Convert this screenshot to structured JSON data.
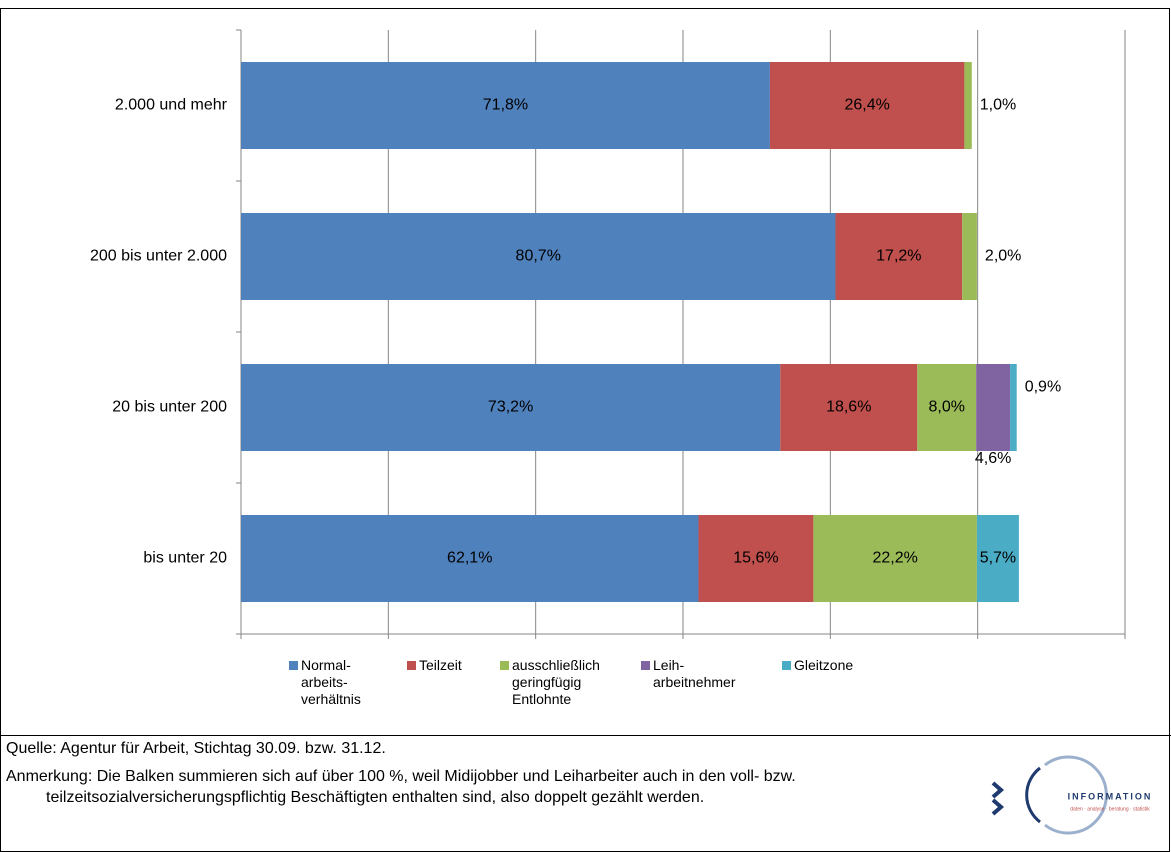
{
  "chart_data": {
    "type": "stacked-bar-horizontal",
    "categories": [
      "2.000 und mehr",
      "200 bis unter 2.000",
      "20 bis unter 200",
      "bis unter 20"
    ],
    "series": [
      {
        "name": "Normal-\narbeits-\nverhältnis",
        "color": "#4f81bd",
        "values": [
          71.8,
          80.7,
          73.2,
          62.1
        ],
        "value_labels": [
          "71,8%",
          "80,7%",
          "73,2%",
          "62,1%"
        ]
      },
      {
        "name": "Teilzeit",
        "color": "#c0504d",
        "values": [
          26.4,
          17.2,
          18.6,
          15.6
        ],
        "value_labels": [
          "26,4%",
          "17,2%",
          "18,6%",
          "15,6%"
        ]
      },
      {
        "name": "ausschließlich\ngeringfügig\nEntlohnte",
        "color": "#9bbb59",
        "values": [
          1.0,
          2.0,
          8.0,
          22.2
        ],
        "value_labels": [
          "1,0%",
          "2,0%",
          "8,0%",
          "22,2%"
        ]
      },
      {
        "name": "Leih-\narbeitnehmer",
        "color": "#8064a2",
        "values": [
          null,
          null,
          4.6,
          null
        ],
        "value_labels": [
          null,
          null,
          "4,6%",
          null
        ]
      },
      {
        "name": "Gleitzone",
        "color": "#4bacc6",
        "values": [
          null,
          null,
          0.9,
          5.7
        ],
        "value_labels": [
          null,
          null,
          "0,9%",
          "5,7%"
        ]
      }
    ],
    "xlim": [
      0,
      120
    ],
    "xticks": [
      0,
      20,
      40,
      60,
      80,
      100,
      120
    ],
    "grid": true,
    "legend": "bottom"
  },
  "footer": {
    "source": "Quelle: Agentur für Arbeit, Stichtag 30.09. bzw. 31.12.",
    "note": "Anmerkung: Die Balken summieren sich auf über 100 %, weil Midijobber und Leiharbeiter auch in den voll- bzw. teilzeitsozialversicherungspflichtig Beschäftigten enthalten sind, also doppelt gezählt werden."
  },
  "logo": {
    "title": "INFORMATION",
    "subtitle": "daten · analyse · beratung · statistik"
  }
}
